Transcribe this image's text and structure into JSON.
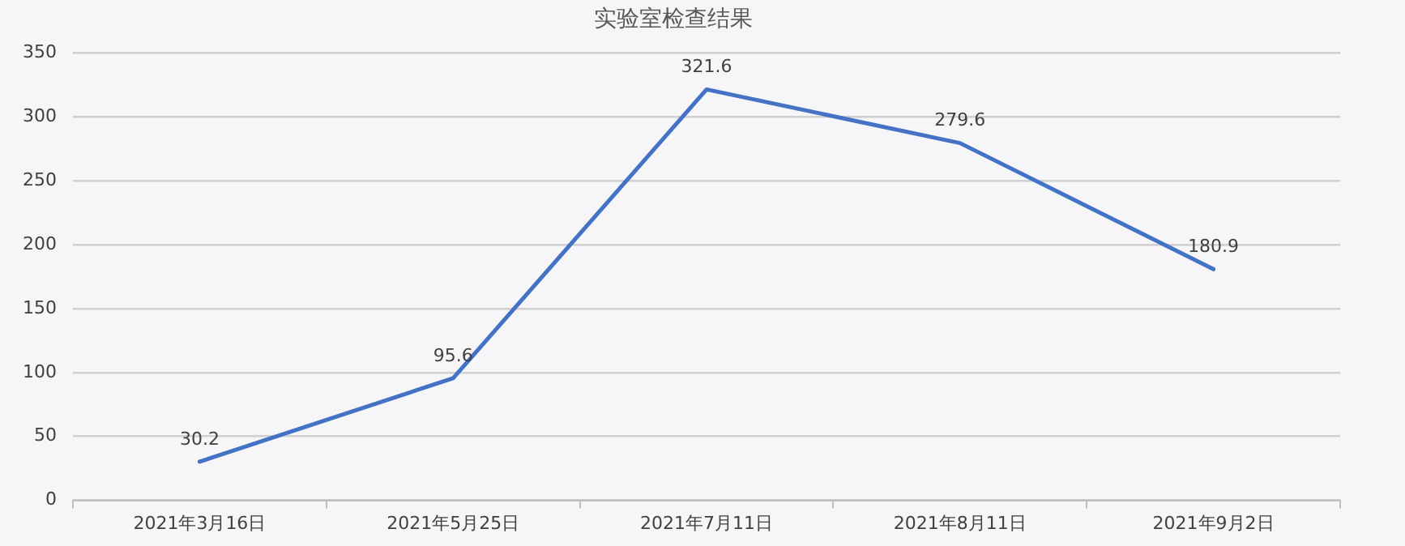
{
  "chart_data": {
    "type": "line",
    "title": "实验室检查结果",
    "categories": [
      "2021年3月16日",
      "2021年5月25日",
      "2021年7月11日",
      "2021年8月11日",
      "2021年9月2日"
    ],
    "series": [
      {
        "color": "#4472c4",
        "values": [
          30.2,
          95.6,
          321.6,
          279.6,
          180.9
        ]
      }
    ],
    "ylim": [
      0,
      350
    ],
    "yticks": [
      0,
      50,
      100,
      150,
      200,
      250,
      300,
      350
    ],
    "grid": "y",
    "legend": false,
    "marker": "none",
    "line_style": "solid",
    "data_labels": true
  }
}
